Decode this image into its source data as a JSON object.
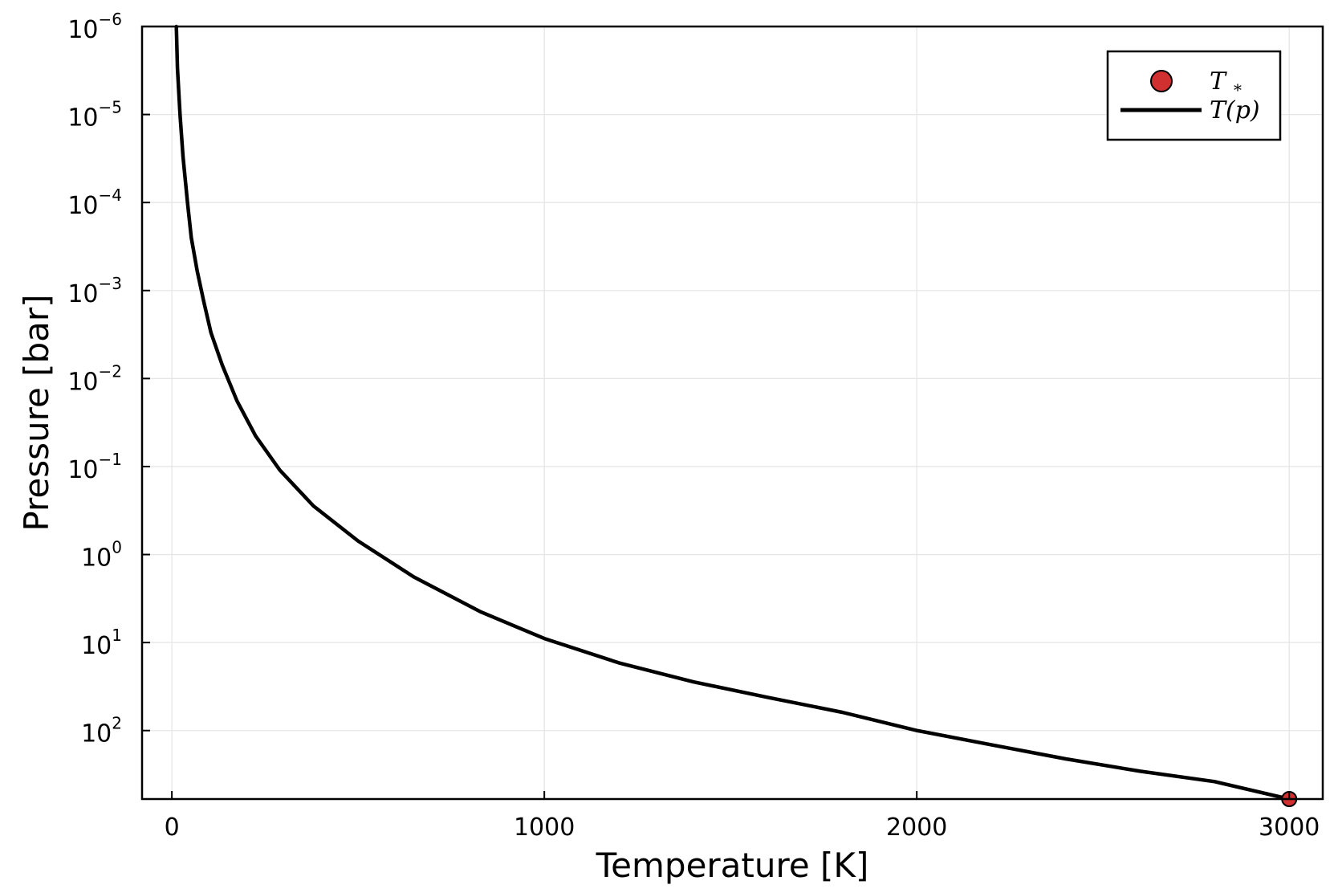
{
  "chart_data": {
    "type": "line",
    "title": "",
    "xlabel": "Temperature [K]",
    "ylabel": "Pressure [bar]",
    "x_axis": {
      "scale": "linear",
      "range": [
        -80,
        3090
      ],
      "ticks": [
        0,
        1000,
        2000,
        3000
      ],
      "tick_labels": [
        "0",
        "1000",
        "2000",
        "3000"
      ]
    },
    "y_axis": {
      "scale": "log",
      "direction": "inverted",
      "range": [
        1e-06,
        600
      ],
      "ticks": [
        1e-06,
        1e-05,
        0.0001,
        0.001,
        0.01,
        0.1,
        1,
        10,
        100
      ],
      "tick_labels": [
        {
          "base": "10",
          "exp": "−6"
        },
        {
          "base": "10",
          "exp": "−5"
        },
        {
          "base": "10",
          "exp": "−4"
        },
        {
          "base": "10",
          "exp": "−3"
        },
        {
          "base": "10",
          "exp": "−2"
        },
        {
          "base": "10",
          "exp": "−1"
        },
        {
          "base": "10",
          "exp": "0"
        },
        {
          "base": "10",
          "exp": "1"
        },
        {
          "base": "10",
          "exp": "2"
        }
      ]
    },
    "grid": true,
    "legend": {
      "placement": "top-right",
      "entries": [
        {
          "label_main": "T",
          "label_sub": "*",
          "marker": "circle",
          "color": "#d03030"
        },
        {
          "label_main": "T(p)",
          "marker": "line",
          "color": "#000000"
        }
      ]
    },
    "series": [
      {
        "label": "T(p)",
        "kind": "line",
        "color": "#000000",
        "points": [
          {
            "x": 12,
            "y": 1e-06
          },
          {
            "x": 15,
            "y": 3e-06
          },
          {
            "x": 22,
            "y": 1e-05
          },
          {
            "x": 30,
            "y": 3e-05
          },
          {
            "x": 42,
            "y": 0.0001
          },
          {
            "x": 52,
            "y": 0.00025
          },
          {
            "x": 68,
            "y": 0.0006
          },
          {
            "x": 85,
            "y": 0.0013
          },
          {
            "x": 105,
            "y": 0.003
          },
          {
            "x": 135,
            "y": 0.007
          },
          {
            "x": 175,
            "y": 0.018
          },
          {
            "x": 225,
            "y": 0.045
          },
          {
            "x": 290,
            "y": 0.11
          },
          {
            "x": 380,
            "y": 0.28
          },
          {
            "x": 500,
            "y": 0.7
          },
          {
            "x": 650,
            "y": 1.8
          },
          {
            "x": 830,
            "y": 4.5
          },
          {
            "x": 1000,
            "y": 9
          },
          {
            "x": 1200,
            "y": 17
          },
          {
            "x": 1400,
            "y": 28
          },
          {
            "x": 1600,
            "y": 42
          },
          {
            "x": 1800,
            "y": 62
          },
          {
            "x": 2000,
            "y": 100
          },
          {
            "x": 2200,
            "y": 145
          },
          {
            "x": 2400,
            "y": 210
          },
          {
            "x": 2600,
            "y": 290
          },
          {
            "x": 2800,
            "y": 380
          },
          {
            "x": 3000,
            "y": 600
          }
        ]
      },
      {
        "label": "T_*",
        "kind": "scatter",
        "color": "#d03030",
        "points": [
          {
            "x": 3000,
            "y": 600
          }
        ]
      }
    ]
  }
}
